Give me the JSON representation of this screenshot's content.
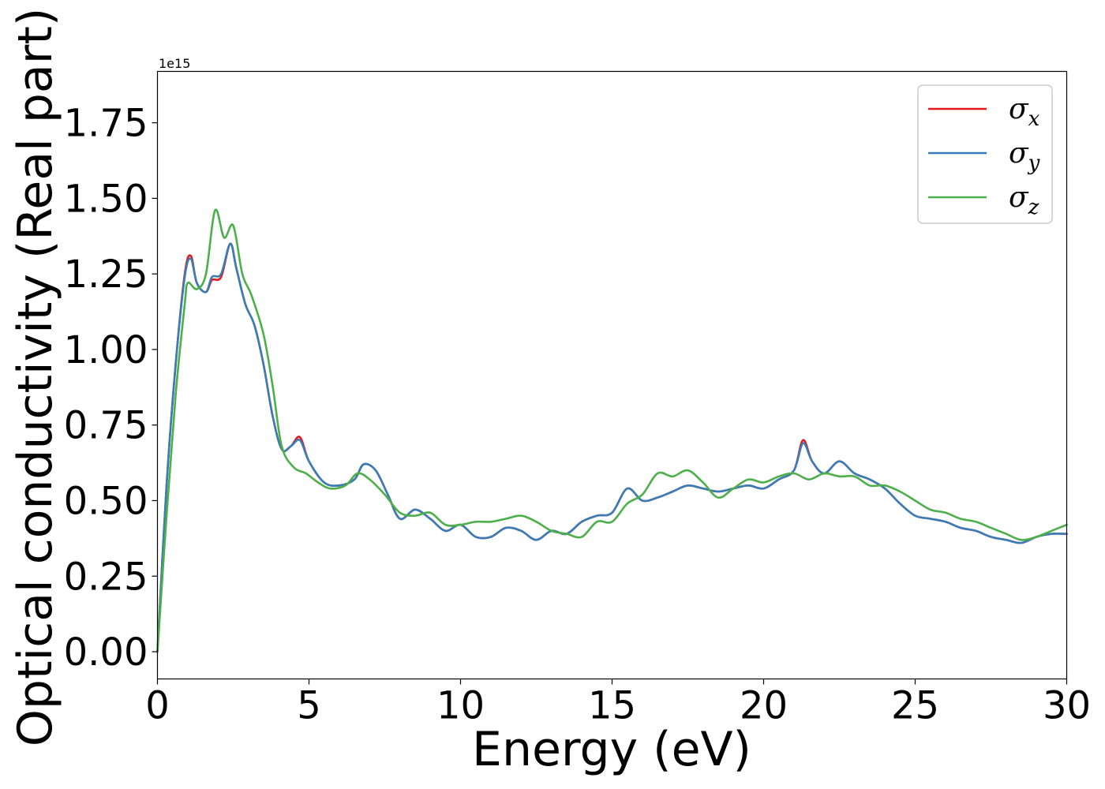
{
  "chart_data": {
    "type": "line",
    "xlabel": "Energy (eV)",
    "ylabel": "Optical conductivity (Real part)",
    "y_offset_label": "1e15",
    "xlim": [
      0,
      30
    ],
    "ylim": [
      -0.09,
      1.92
    ],
    "xticks": [
      "0",
      "5",
      "10",
      "15",
      "20",
      "25",
      "30"
    ],
    "xtick_values": [
      0,
      5,
      10,
      15,
      20,
      25,
      30
    ],
    "yticks": [
      "0.00",
      "0.25",
      "0.50",
      "0.75",
      "1.00",
      "1.25",
      "1.50",
      "1.75"
    ],
    "ytick_values": [
      0,
      0.25,
      0.5,
      0.75,
      1.0,
      1.25,
      1.5,
      1.75
    ],
    "grid": false,
    "legend_position": "top-right",
    "series": [
      {
        "name": "σx",
        "label_base": "σ",
        "label_sub": "x",
        "color": "#e41a1c",
        "x": [
          0,
          0.3,
          0.6,
          0.9,
          1.1,
          1.3,
          1.6,
          1.8,
          2.1,
          2.4,
          2.6,
          2.9,
          3.2,
          3.5,
          3.8,
          4.1,
          4.4,
          4.7,
          5.0,
          5.5,
          6.0,
          6.5,
          6.8,
          7.2,
          7.6,
          8.0,
          8.5,
          9.0,
          9.5,
          10.0,
          10.5,
          11.0,
          11.5,
          12.0,
          12.5,
          13.0,
          13.5,
          14.0,
          14.5,
          15.0,
          15.5,
          16.0,
          16.5,
          17.0,
          17.5,
          18.0,
          18.5,
          19.0,
          19.5,
          20.0,
          20.5,
          21.0,
          21.3,
          21.6,
          22.0,
          22.5,
          23.0,
          23.5,
          24.0,
          24.5,
          25.0,
          25.5,
          26.0,
          26.5,
          27.0,
          27.5,
          28.0,
          28.5,
          29.0,
          29.5,
          30.0
        ],
        "y": [
          0,
          0.55,
          0.95,
          1.25,
          1.31,
          1.22,
          1.19,
          1.23,
          1.24,
          1.35,
          1.27,
          1.15,
          1.08,
          0.95,
          0.78,
          0.67,
          0.68,
          0.71,
          0.63,
          0.56,
          0.55,
          0.57,
          0.62,
          0.6,
          0.52,
          0.44,
          0.47,
          0.44,
          0.4,
          0.42,
          0.38,
          0.38,
          0.41,
          0.4,
          0.37,
          0.4,
          0.39,
          0.43,
          0.45,
          0.46,
          0.54,
          0.5,
          0.51,
          0.53,
          0.55,
          0.54,
          0.53,
          0.54,
          0.55,
          0.54,
          0.57,
          0.6,
          0.7,
          0.63,
          0.59,
          0.63,
          0.59,
          0.57,
          0.54,
          0.49,
          0.45,
          0.44,
          0.43,
          0.41,
          0.4,
          0.38,
          0.37,
          0.36,
          0.38,
          0.39,
          0.39
        ]
      },
      {
        "name": "σy",
        "label_base": "σ",
        "label_sub": "y",
        "color": "#377eb8",
        "x": [
          0,
          0.3,
          0.6,
          0.9,
          1.1,
          1.3,
          1.6,
          1.8,
          2.1,
          2.4,
          2.6,
          2.9,
          3.2,
          3.5,
          3.8,
          4.1,
          4.4,
          4.7,
          5.0,
          5.5,
          6.0,
          6.5,
          6.8,
          7.2,
          7.6,
          8.0,
          8.5,
          9.0,
          9.5,
          10.0,
          10.5,
          11.0,
          11.5,
          12.0,
          12.5,
          13.0,
          13.5,
          14.0,
          14.5,
          15.0,
          15.5,
          16.0,
          16.5,
          17.0,
          17.5,
          18.0,
          18.5,
          19.0,
          19.5,
          20.0,
          20.5,
          21.0,
          21.3,
          21.6,
          22.0,
          22.5,
          23.0,
          23.5,
          24.0,
          24.5,
          25.0,
          25.5,
          26.0,
          26.5,
          27.0,
          27.5,
          28.0,
          28.5,
          29.0,
          29.5,
          30.0
        ],
        "y": [
          0,
          0.55,
          0.95,
          1.24,
          1.3,
          1.22,
          1.19,
          1.24,
          1.25,
          1.35,
          1.27,
          1.15,
          1.08,
          0.95,
          0.78,
          0.67,
          0.68,
          0.7,
          0.63,
          0.56,
          0.55,
          0.57,
          0.62,
          0.6,
          0.52,
          0.44,
          0.47,
          0.44,
          0.4,
          0.42,
          0.38,
          0.38,
          0.41,
          0.4,
          0.37,
          0.4,
          0.39,
          0.43,
          0.45,
          0.46,
          0.54,
          0.5,
          0.51,
          0.53,
          0.55,
          0.54,
          0.53,
          0.54,
          0.55,
          0.54,
          0.57,
          0.6,
          0.69,
          0.63,
          0.59,
          0.63,
          0.59,
          0.57,
          0.54,
          0.49,
          0.45,
          0.44,
          0.43,
          0.41,
          0.4,
          0.38,
          0.37,
          0.36,
          0.38,
          0.39,
          0.39
        ]
      },
      {
        "name": "σz",
        "label_base": "σ",
        "label_sub": "z",
        "color": "#4daf4a",
        "x": [
          0,
          0.3,
          0.6,
          0.9,
          1.0,
          1.3,
          1.6,
          1.9,
          2.2,
          2.5,
          2.8,
          3.1,
          3.5,
          3.8,
          4.1,
          4.5,
          4.9,
          5.3,
          5.7,
          6.2,
          6.6,
          7.0,
          7.5,
          8.0,
          8.5,
          9.0,
          9.5,
          10.0,
          10.5,
          11.0,
          11.5,
          12.0,
          12.5,
          13.0,
          13.5,
          14.0,
          14.5,
          15.0,
          15.5,
          16.0,
          16.5,
          17.0,
          17.5,
          18.0,
          18.5,
          19.0,
          19.5,
          20.0,
          20.5,
          21.0,
          21.5,
          22.0,
          22.5,
          23.0,
          23.5,
          24.0,
          24.5,
          25.0,
          25.5,
          26.0,
          26.5,
          27.0,
          27.5,
          28.0,
          28.5,
          29.0,
          29.5,
          30.0
        ],
        "y": [
          0,
          0.45,
          0.85,
          1.15,
          1.22,
          1.2,
          1.25,
          1.46,
          1.37,
          1.41,
          1.25,
          1.18,
          1.05,
          0.88,
          0.68,
          0.61,
          0.59,
          0.56,
          0.54,
          0.55,
          0.59,
          0.57,
          0.52,
          0.46,
          0.45,
          0.46,
          0.42,
          0.42,
          0.43,
          0.43,
          0.44,
          0.45,
          0.43,
          0.4,
          0.39,
          0.38,
          0.43,
          0.43,
          0.49,
          0.52,
          0.59,
          0.58,
          0.6,
          0.56,
          0.51,
          0.54,
          0.57,
          0.56,
          0.58,
          0.59,
          0.57,
          0.59,
          0.58,
          0.58,
          0.55,
          0.55,
          0.53,
          0.5,
          0.47,
          0.46,
          0.44,
          0.43,
          0.41,
          0.39,
          0.37,
          0.38,
          0.4,
          0.42
        ]
      }
    ]
  }
}
